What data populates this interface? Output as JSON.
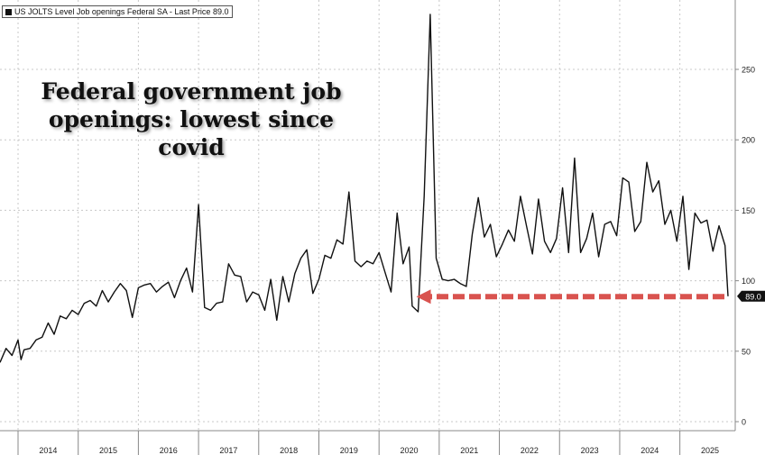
{
  "legend": {
    "label": "US JOLTS Level Job openings Federal SA - Last Price 89.0",
    "icon": "square-icon"
  },
  "annotation": {
    "text": "Federal government job openings: lowest since covid"
  },
  "last_price_label": "89.0",
  "colors": {
    "line": "#111111",
    "grid": "#c8c8c8",
    "arrow": "#d9534f",
    "last_price_badge": "#111111",
    "background": "#ffffff"
  },
  "chart_data": {
    "type": "line",
    "title": "",
    "xlabel": "",
    "ylabel": "",
    "ylim": [
      -5,
      290
    ],
    "xlim": [
      2013.2,
      2025.42
    ],
    "y_ticks": [
      0,
      50,
      100,
      150,
      200,
      250
    ],
    "x_tick_labels": [
      "2014",
      "2015",
      "2016",
      "2017",
      "2018",
      "2019",
      "2020",
      "2021",
      "2022",
      "2023",
      "2024",
      "2025"
    ],
    "grid": true,
    "y_axis_side": "right",
    "last_value": 89.0,
    "series": [
      {
        "name": "US JOLTS Level Job openings Federal SA",
        "x": [
          2013.2,
          2013.3,
          2013.4,
          2013.5,
          2013.55,
          2013.6,
          2013.7,
          2013.8,
          2013.9,
          2014.0,
          2014.1,
          2014.2,
          2014.3,
          2014.4,
          2014.5,
          2014.6,
          2014.7,
          2014.8,
          2014.9,
          2015.0,
          2015.1,
          2015.2,
          2015.3,
          2015.4,
          2015.5,
          2015.6,
          2015.7,
          2015.8,
          2015.9,
          2016.0,
          2016.1,
          2016.2,
          2016.3,
          2016.4,
          2016.5,
          2016.6,
          2016.7,
          2016.8,
          2016.9,
          2017.0,
          2017.1,
          2017.2,
          2017.3,
          2017.4,
          2017.5,
          2017.6,
          2017.7,
          2017.8,
          2017.9,
          2018.0,
          2018.1,
          2018.2,
          2018.3,
          2018.4,
          2018.5,
          2018.6,
          2018.7,
          2018.8,
          2018.9,
          2019.0,
          2019.1,
          2019.2,
          2019.3,
          2019.4,
          2019.5,
          2019.6,
          2019.7,
          2019.8,
          2019.9,
          2020.0,
          2020.05,
          2020.15,
          2020.25,
          2020.35,
          2020.45,
          2020.55,
          2020.65,
          2020.75,
          2020.85,
          2020.95,
          2021.05,
          2021.15,
          2021.25,
          2021.35,
          2021.45,
          2021.55,
          2021.65,
          2021.75,
          2021.85,
          2021.95,
          2022.05,
          2022.15,
          2022.25,
          2022.35,
          2022.45,
          2022.55,
          2022.65,
          2022.75,
          2022.85,
          2022.95,
          2023.05,
          2023.15,
          2023.25,
          2023.35,
          2023.45,
          2023.55,
          2023.65,
          2023.75,
          2023.85,
          2023.95,
          2024.05,
          2024.15,
          2024.25,
          2024.35,
          2024.45,
          2024.55,
          2024.65,
          2024.75,
          2024.85,
          2024.95,
          2025.05,
          2025.15,
          2025.25,
          2025.3
        ],
        "values": [
          42,
          52,
          47,
          58,
          44,
          51,
          52,
          58,
          60,
          70,
          62,
          75,
          73,
          79,
          76,
          84,
          86,
          82,
          93,
          85,
          92,
          98,
          93,
          74,
          95,
          97,
          98,
          92,
          96,
          99,
          88,
          100,
          109,
          92,
          154,
          81,
          79,
          84,
          85,
          112,
          104,
          103,
          85,
          92,
          90,
          79,
          101,
          72,
          103,
          85,
          105,
          116,
          122,
          91,
          101,
          118,
          116,
          129,
          126,
          163,
          114,
          110,
          114,
          112,
          120,
          106,
          92,
          148,
          112,
          124,
          82,
          78,
          160,
          289,
          116,
          101,
          100,
          101,
          98,
          96,
          133,
          159,
          131,
          140,
          117,
          126,
          136,
          128,
          160,
          139,
          119,
          158,
          128,
          120,
          130,
          166,
          120,
          187,
          120,
          130,
          148,
          117,
          140,
          142,
          132,
          173,
          170,
          135,
          142,
          184,
          163,
          171,
          140,
          150,
          128,
          160,
          108,
          148,
          141,
          143,
          121,
          139,
          125,
          89
        ]
      }
    ]
  }
}
